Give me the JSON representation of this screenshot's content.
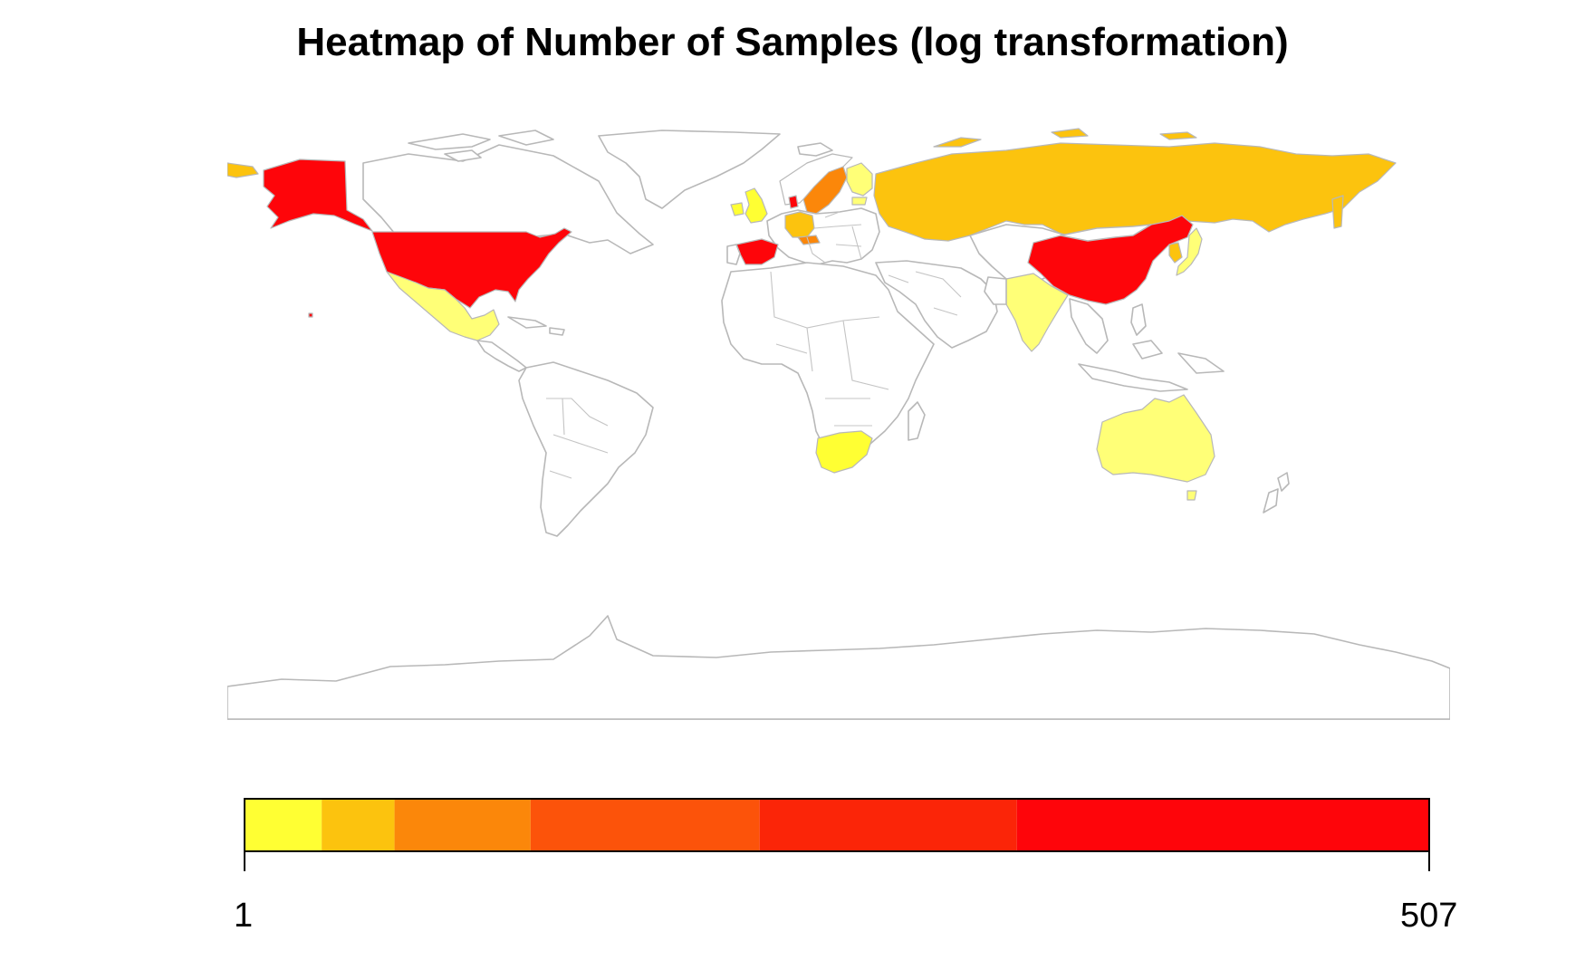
{
  "title": "Heatmap of Number of Samples (log transformation)",
  "legend": {
    "min_label": "1",
    "max_label": "507",
    "scale": "log",
    "bands": [
      {
        "from": 1,
        "to": 1.5,
        "color": "#ffff33"
      },
      {
        "from": 1.5,
        "to": 2.2,
        "color": "#fcc30e"
      },
      {
        "from": 2.2,
        "to": 4.5,
        "color": "#fb870a"
      },
      {
        "from": 4.5,
        "to": 15,
        "color": "#fc530a"
      },
      {
        "from": 15,
        "to": 58,
        "color": "#fb2508"
      },
      {
        "from": 58,
        "to": 507,
        "color": "#fe050a"
      }
    ]
  },
  "chart_data": {
    "type": "heatmap",
    "title": "Heatmap of Number of Samples (log transformation)",
    "value_range": [
      1,
      507
    ],
    "colors": {
      "highest": "#fe050a",
      "high": "#fb2508",
      "mid_high": "#fc530a",
      "mid": "#fb870a",
      "low": "#fcc30e",
      "lower": "#ffff77",
      "lowest": "#ffff33",
      "no_data": "#ffffff",
      "outline": "#b8b8b8"
    },
    "regions": [
      {
        "name": "United States",
        "color": "#fe050a"
      },
      {
        "name": "China",
        "color": "#fe050a"
      },
      {
        "name": "Spain",
        "color": "#fe050a"
      },
      {
        "name": "Denmark",
        "color": "#fe050a"
      },
      {
        "name": "Sweden",
        "color": "#fb870a"
      },
      {
        "name": "Austria",
        "color": "#fb870a"
      },
      {
        "name": "Russia",
        "color": "#fcc30e"
      },
      {
        "name": "Germany",
        "color": "#fcc30e"
      },
      {
        "name": "South Korea",
        "color": "#fcc30e"
      },
      {
        "name": "Finland",
        "color": "#ffff77"
      },
      {
        "name": "Estonia",
        "color": "#ffff77"
      },
      {
        "name": "Mexico",
        "color": "#ffff77"
      },
      {
        "name": "India",
        "color": "#ffff77"
      },
      {
        "name": "Japan",
        "color": "#ffff77"
      },
      {
        "name": "Australia",
        "color": "#ffff77"
      },
      {
        "name": "United Kingdom",
        "color": "#ffff33"
      },
      {
        "name": "Ireland",
        "color": "#ffff33"
      },
      {
        "name": "South Africa",
        "color": "#ffff33"
      }
    ]
  }
}
